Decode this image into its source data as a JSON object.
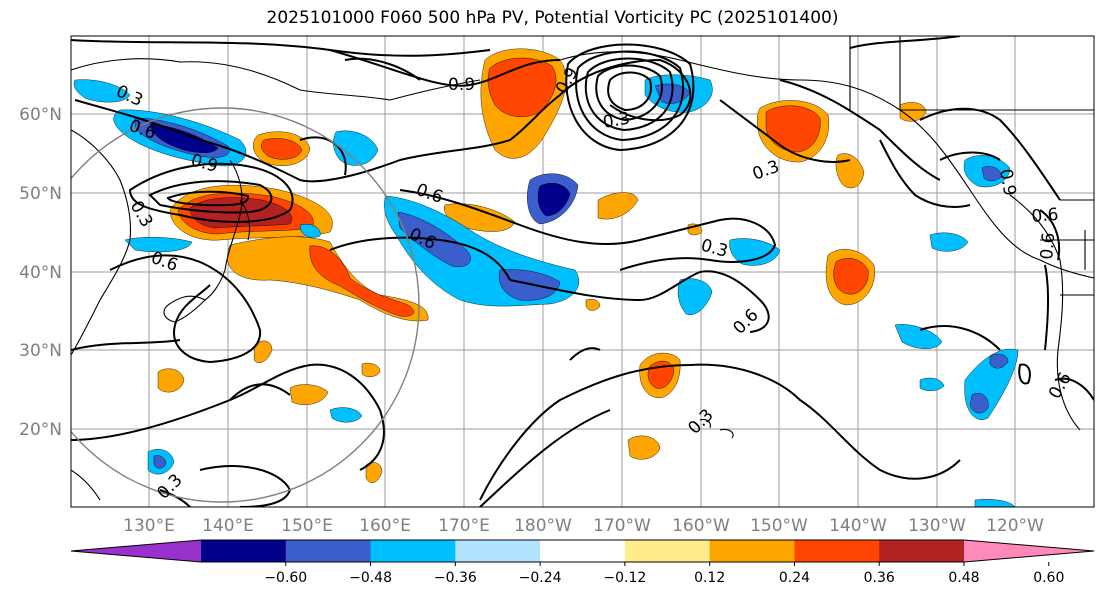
{
  "title": "2025101000 F060 500 hPa PV, Potential Vorticity PC (2025101400)",
  "map": {
    "lat_labels": [
      "60°N",
      "50°N",
      "40°N",
      "30°N",
      "20°N"
    ],
    "lon_labels": [
      "130°E",
      "140°E",
      "150°E",
      "160°E",
      "170°E",
      "180°W",
      "170°W",
      "160°W",
      "150°W",
      "140°W",
      "130°W",
      "120°W"
    ],
    "contour_labels": [
      "0.3",
      "0.6",
      "0.9",
      "0.9",
      "0.3",
      "0.6",
      "0.6",
      "0.6",
      "0.3",
      "0.6",
      "0.3",
      "0.3",
      "0.6",
      "0.9",
      "0.6",
      "0.3",
      "0.3",
      "0.6",
      "0.9"
    ],
    "land_border_color": "#000000",
    "grid_color": "#9e9e9e"
  },
  "colorbar": {
    "colors": [
      "#9932cc",
      "#00008b",
      "#3a5fcd",
      "#00bfff",
      "#b2e4ff",
      "#ffffff",
      "#ffec8b",
      "#ffa500",
      "#ff4500",
      "#b22222",
      "#ff89b8"
    ],
    "tick_labels": [
      "−0.60",
      "−0.48",
      "−0.36",
      "−0.24",
      "−0.12",
      "0.12",
      "0.24",
      "0.36",
      "0.48",
      "0.60"
    ]
  }
}
